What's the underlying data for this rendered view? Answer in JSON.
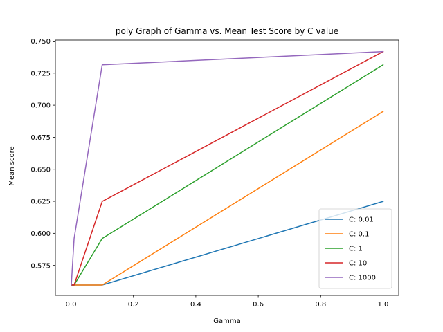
{
  "chart_data": {
    "type": "line",
    "title": "poly Graph of Gamma vs. Mean Test Score by C value",
    "xlabel": "Gamma",
    "ylabel": "Mean score",
    "xlim": [
      -0.05,
      1.05
    ],
    "ylim": [
      0.5516,
      0.7508
    ],
    "xticks": [
      0.0,
      0.2,
      0.4,
      0.6,
      0.8,
      1.0
    ],
    "xtick_labels": [
      "0.0",
      "0.2",
      "0.4",
      "0.6",
      "0.8",
      "1.0"
    ],
    "yticks": [
      0.575,
      0.6,
      0.625,
      0.65,
      0.675,
      0.7,
      0.725,
      0.75
    ],
    "ytick_labels": [
      "0.575",
      "0.600",
      "0.625",
      "0.650",
      "0.675",
      "0.700",
      "0.725",
      "0.750"
    ],
    "x": [
      0.001,
      0.01,
      0.1,
      1.0
    ],
    "legend_position": "lower right",
    "grid": false,
    "series": [
      {
        "name": "C: 0.01",
        "color": "#1f77b4",
        "values": [
          0.5597,
          0.5597,
          0.5597,
          0.6249
        ]
      },
      {
        "name": "C: 0.1",
        "color": "#ff7f0e",
        "values": [
          0.5597,
          0.5597,
          0.5597,
          0.6951
        ]
      },
      {
        "name": "C: 1",
        "color": "#2ca02c",
        "values": [
          0.5597,
          0.5597,
          0.596,
          0.7315
        ]
      },
      {
        "name": "C: 10",
        "color": "#d62728",
        "values": [
          0.5597,
          0.5597,
          0.6249,
          0.7418
        ]
      },
      {
        "name": "C: 1000",
        "color": "#9467bd",
        "values": [
          0.5597,
          0.596,
          0.7315,
          0.7418
        ]
      }
    ]
  }
}
